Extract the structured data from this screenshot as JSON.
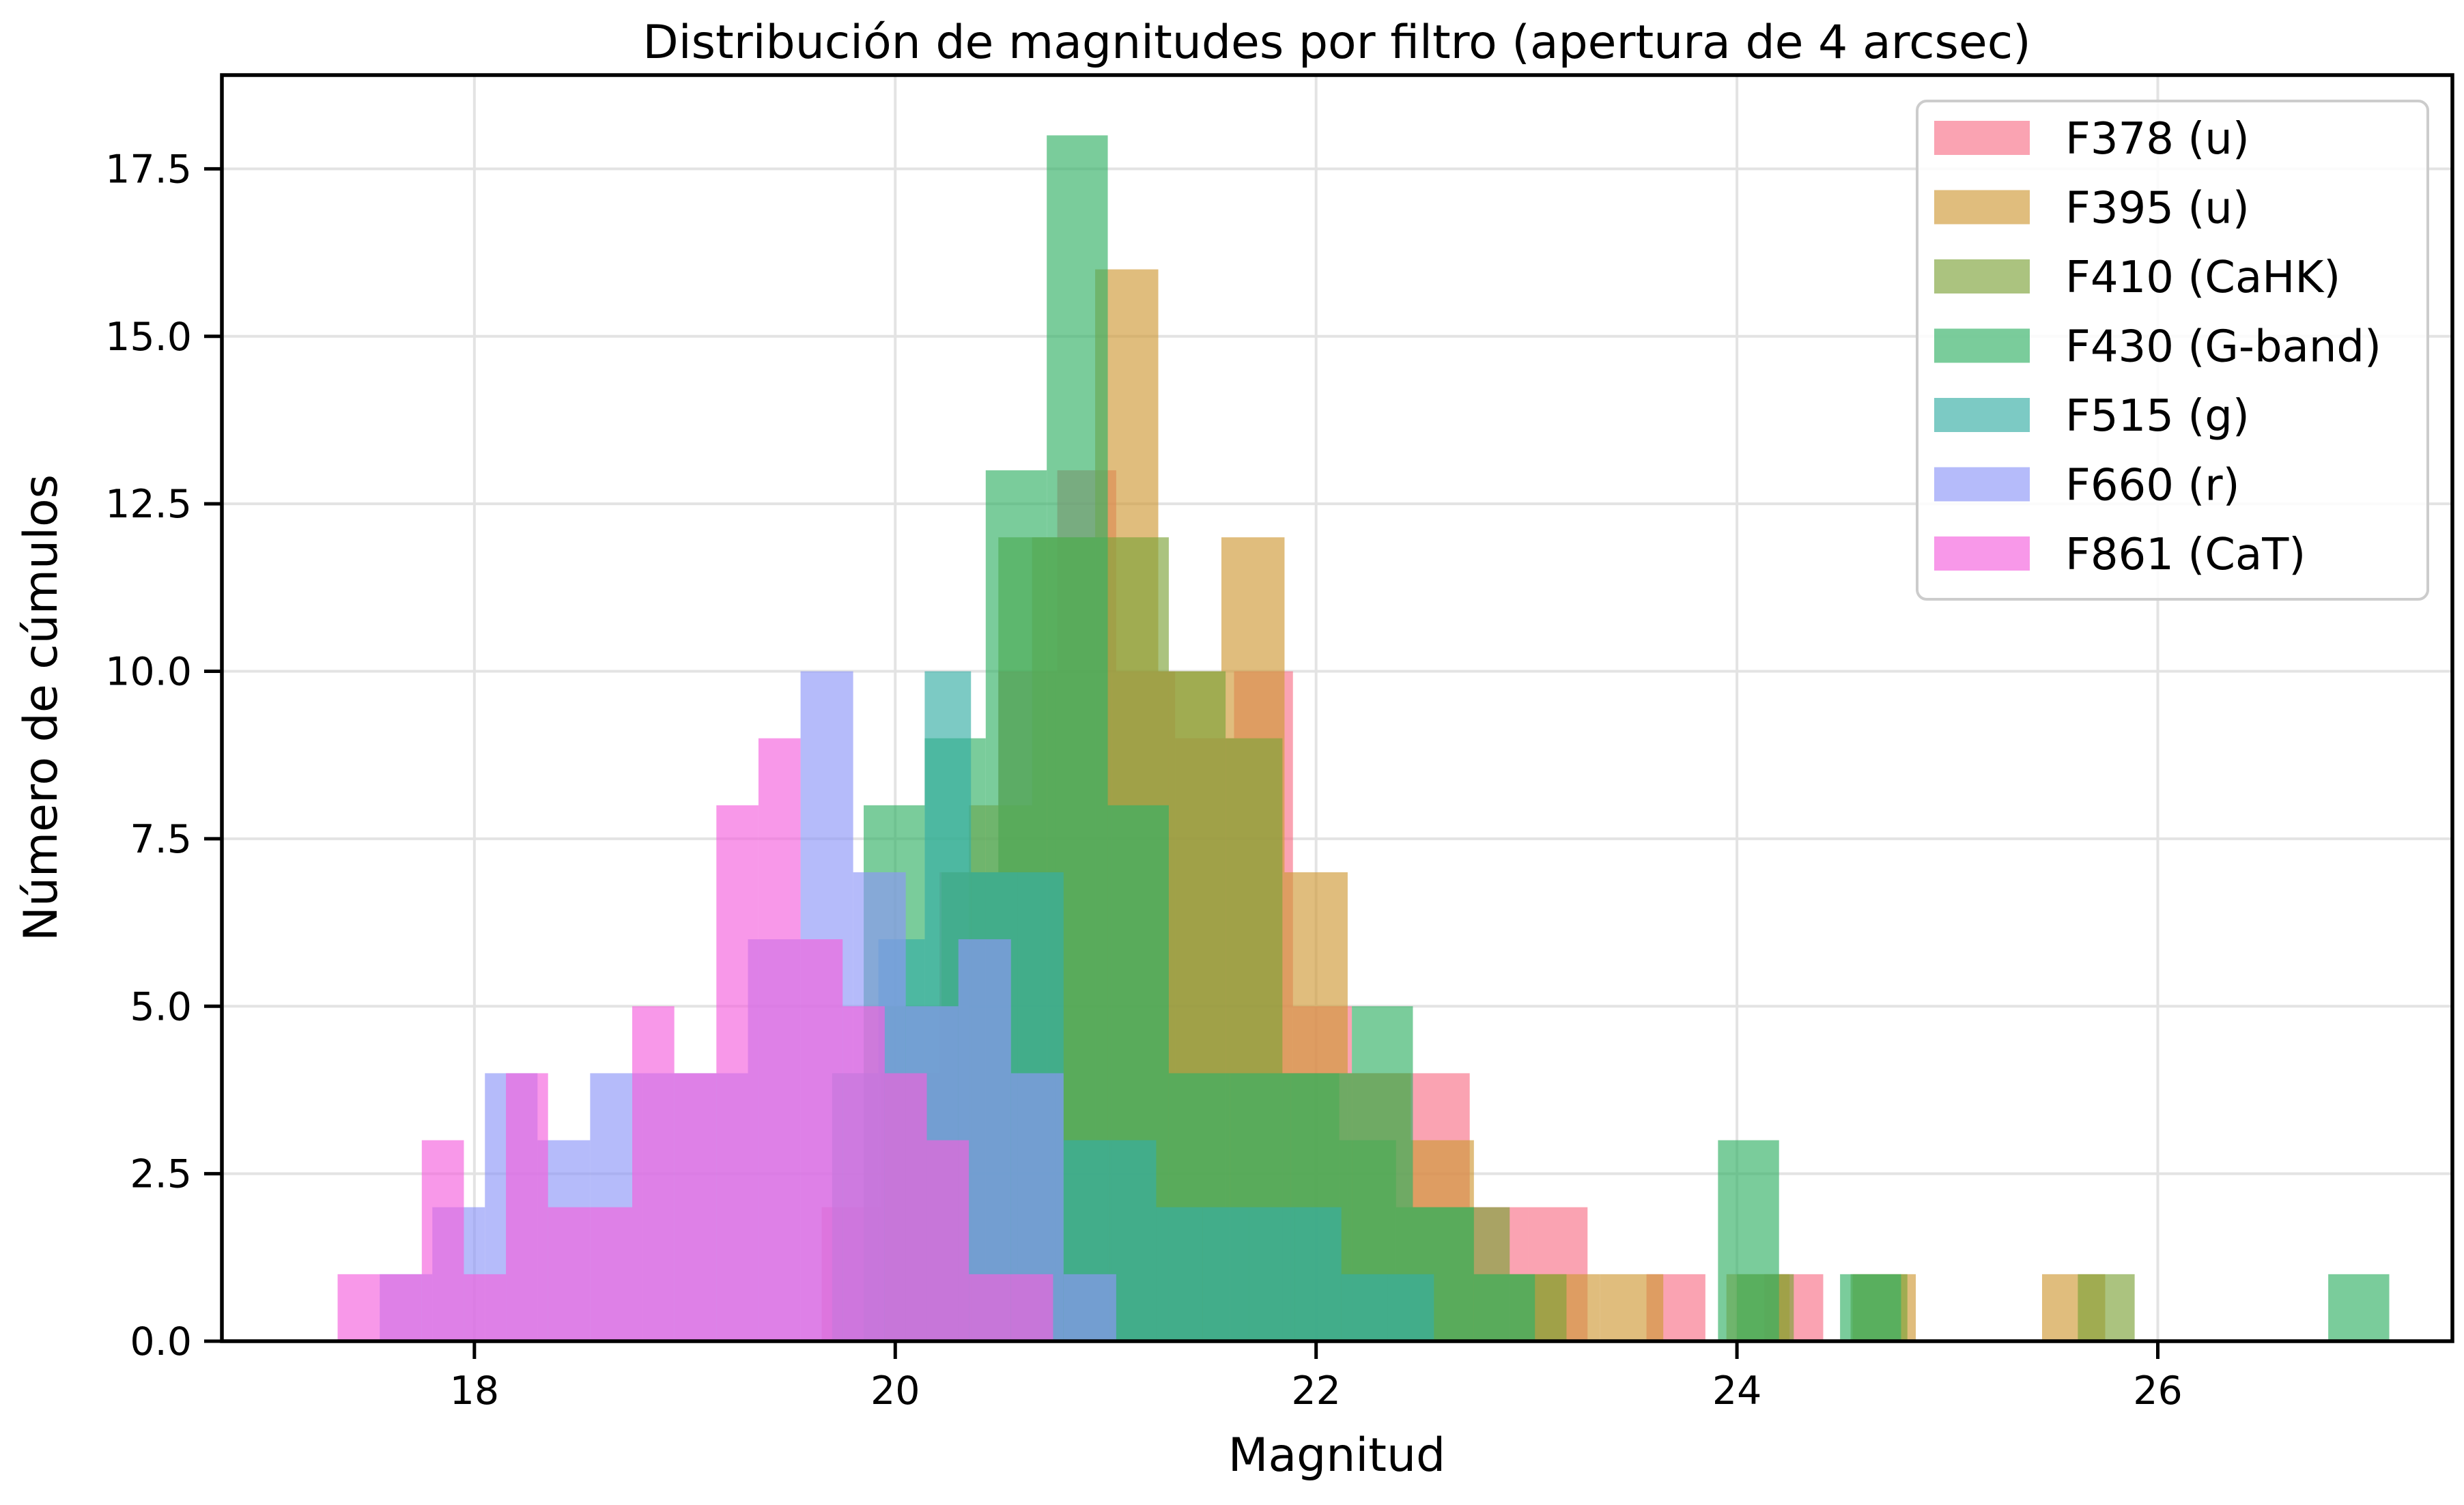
{
  "chart_data": {
    "type": "bar",
    "subtype": "overlaid-histogram",
    "title": "Distribución de magnitudes por filtro (apertura de 4 arcsec)",
    "xlabel": "Magnitud",
    "ylabel": "Número de cúmulos",
    "xlim": [
      16.8,
      27.4
    ],
    "ylim": [
      0,
      18.9
    ],
    "x_ticks": [
      18,
      20,
      22,
      24,
      26
    ],
    "x_tick_labels": [
      "18",
      "20",
      "22",
      "24",
      "26"
    ],
    "y_ticks": [
      0,
      2.5,
      5,
      7.5,
      10,
      12.5,
      15,
      17.5
    ],
    "y_tick_labels": [
      "0.0",
      "2.5",
      "5.0",
      "7.5",
      "10.0",
      "12.5",
      "15.0",
      "17.5"
    ],
    "grid": true,
    "legend_position": "top-right",
    "bar_opacity": 0.65,
    "series": [
      {
        "name": "F378 (u)",
        "color": "#f77189",
        "bins": [
          [
            19.65,
            19.93,
            2
          ],
          [
            19.93,
            20.21,
            4
          ],
          [
            20.21,
            20.49,
            7
          ],
          [
            20.49,
            20.77,
            10
          ],
          [
            20.77,
            21.05,
            13
          ],
          [
            21.05,
            21.33,
            10
          ],
          [
            21.33,
            21.61,
            9
          ],
          [
            21.61,
            21.89,
            10
          ],
          [
            21.89,
            22.17,
            5
          ],
          [
            22.17,
            22.45,
            4
          ],
          [
            22.45,
            22.73,
            4
          ],
          [
            22.73,
            23.01,
            2
          ],
          [
            23.01,
            23.29,
            2
          ],
          [
            23.29,
            23.57,
            0
          ],
          [
            23.57,
            23.85,
            1
          ],
          [
            23.85,
            24.13,
            0
          ],
          [
            24.13,
            24.41,
            1
          ]
        ]
      },
      {
        "name": "F395 (u)",
        "color": "#cf9938",
        "bins": [
          [
            20.35,
            20.65,
            8
          ],
          [
            20.65,
            20.95,
            12
          ],
          [
            20.95,
            21.25,
            16
          ],
          [
            21.25,
            21.55,
            10
          ],
          [
            21.55,
            21.85,
            12
          ],
          [
            21.85,
            22.15,
            7
          ],
          [
            22.15,
            22.45,
            4
          ],
          [
            22.45,
            22.75,
            3
          ],
          [
            22.75,
            23.05,
            1
          ],
          [
            23.05,
            23.35,
            1
          ],
          [
            23.35,
            23.65,
            1
          ],
          [
            23.65,
            23.95,
            0
          ],
          [
            23.95,
            24.25,
            1
          ],
          [
            24.25,
            24.55,
            0
          ],
          [
            24.55,
            24.85,
            1
          ],
          [
            24.85,
            25.15,
            0
          ],
          [
            25.15,
            25.45,
            0
          ],
          [
            25.45,
            25.75,
            1
          ]
        ]
      },
      {
        "name": "F410 (CaHK)",
        "color": "#7ea33a",
        "bins": [
          [
            19.95,
            20.22,
            5
          ],
          [
            20.22,
            20.49,
            7
          ],
          [
            20.49,
            20.76,
            12
          ],
          [
            20.76,
            21.03,
            12
          ],
          [
            21.03,
            21.3,
            12
          ],
          [
            21.3,
            21.57,
            10
          ],
          [
            21.57,
            21.84,
            9
          ],
          [
            21.84,
            22.11,
            4
          ],
          [
            22.11,
            22.38,
            3
          ],
          [
            22.38,
            22.65,
            2
          ],
          [
            22.65,
            22.92,
            2
          ],
          [
            22.92,
            23.19,
            1
          ],
          [
            23.19,
            23.46,
            0
          ],
          [
            23.46,
            23.73,
            0
          ],
          [
            23.73,
            24.0,
            0
          ],
          [
            24.0,
            24.27,
            1
          ],
          [
            24.27,
            24.54,
            0
          ],
          [
            24.54,
            24.81,
            1
          ],
          [
            24.81,
            25.08,
            0
          ],
          [
            25.08,
            25.35,
            0
          ],
          [
            25.35,
            25.62,
            0
          ],
          [
            25.62,
            25.89,
            1
          ]
        ]
      },
      {
        "name": "F430 (G-band)",
        "color": "#32b166",
        "bins": [
          [
            19.85,
            20.14,
            8
          ],
          [
            20.14,
            20.43,
            9
          ],
          [
            20.43,
            20.72,
            13
          ],
          [
            20.72,
            21.01,
            18
          ],
          [
            21.01,
            21.3,
            8
          ],
          [
            21.3,
            21.59,
            4
          ],
          [
            21.59,
            21.88,
            4
          ],
          [
            21.88,
            22.17,
            4
          ],
          [
            22.17,
            22.46,
            5
          ],
          [
            22.46,
            22.75,
            2
          ],
          [
            22.75,
            23.04,
            1
          ],
          [
            23.04,
            23.33,
            0
          ],
          [
            23.33,
            23.62,
            0
          ],
          [
            23.62,
            23.91,
            0
          ],
          [
            23.91,
            24.2,
            3
          ],
          [
            24.2,
            24.49,
            0
          ],
          [
            24.49,
            24.78,
            1
          ],
          [
            24.78,
            25.07,
            0
          ],
          [
            25.07,
            25.36,
            0
          ],
          [
            25.36,
            25.65,
            0
          ],
          [
            25.65,
            25.94,
            0
          ],
          [
            25.94,
            26.23,
            0
          ],
          [
            26.23,
            26.52,
            0
          ],
          [
            26.52,
            26.81,
            0
          ],
          [
            26.81,
            27.1,
            1
          ]
        ]
      },
      {
        "name": "F515 (g)",
        "color": "#36ada4",
        "bins": [
          [
            19.7,
            19.92,
            4
          ],
          [
            19.92,
            20.14,
            6
          ],
          [
            20.14,
            20.36,
            10
          ],
          [
            20.36,
            20.58,
            7
          ],
          [
            20.58,
            20.8,
            7
          ],
          [
            20.8,
            21.02,
            3
          ],
          [
            21.02,
            21.24,
            3
          ],
          [
            21.24,
            21.46,
            2
          ],
          [
            21.46,
            21.68,
            2
          ],
          [
            21.68,
            21.9,
            2
          ],
          [
            21.9,
            22.12,
            2
          ],
          [
            22.12,
            22.34,
            1
          ],
          [
            22.34,
            22.56,
            1
          ]
        ]
      },
      {
        "name": "F660 (r)",
        "color": "#8e96f7",
        "bins": [
          [
            17.55,
            17.8,
            1
          ],
          [
            17.8,
            18.05,
            2
          ],
          [
            18.05,
            18.3,
            4
          ],
          [
            18.3,
            18.55,
            3
          ],
          [
            18.55,
            18.8,
            4
          ],
          [
            18.8,
            19.05,
            4
          ],
          [
            19.05,
            19.3,
            4
          ],
          [
            19.3,
            19.55,
            6
          ],
          [
            19.55,
            19.8,
            10
          ],
          [
            19.8,
            20.05,
            7
          ],
          [
            20.05,
            20.3,
            5
          ],
          [
            20.3,
            20.55,
            6
          ],
          [
            20.55,
            20.8,
            4
          ],
          [
            20.8,
            21.05,
            1
          ]
        ]
      },
      {
        "name": "F861 (CaT)",
        "color": "#f461dd",
        "bins": [
          [
            17.35,
            17.55,
            1
          ],
          [
            17.55,
            17.75,
            1
          ],
          [
            17.75,
            17.95,
            3
          ],
          [
            17.95,
            18.15,
            1
          ],
          [
            18.15,
            18.35,
            4
          ],
          [
            18.35,
            18.55,
            2
          ],
          [
            18.55,
            18.75,
            2
          ],
          [
            18.75,
            18.95,
            5
          ],
          [
            18.95,
            19.15,
            4
          ],
          [
            19.15,
            19.35,
            8
          ],
          [
            19.35,
            19.55,
            9
          ],
          [
            19.55,
            19.75,
            6
          ],
          [
            19.75,
            19.95,
            5
          ],
          [
            19.95,
            20.15,
            4
          ],
          [
            20.15,
            20.35,
            3
          ],
          [
            20.35,
            20.55,
            1
          ],
          [
            20.55,
            20.75,
            1
          ]
        ]
      }
    ]
  }
}
